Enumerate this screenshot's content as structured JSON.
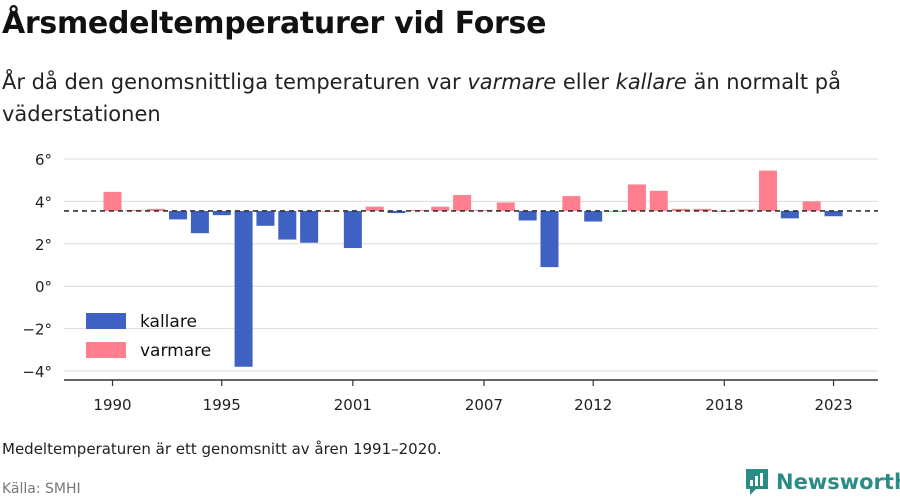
{
  "header": {
    "title": "Årsmedeltemperaturer vid Forse",
    "subtitle_part1": "År då den genomsnittliga temperaturen var ",
    "subtitle_warm": "varmare",
    "subtitle_part2": " eller ",
    "subtitle_cold": "kallare",
    "subtitle_part3": " än normalt på väderstationen"
  },
  "footer": {
    "note": "Medeltemperaturen är ett genomsnitt av åren 1991–2020.",
    "source": "Källa: SMHI",
    "brand": "Newsworthy"
  },
  "colors": {
    "warm": "#ff7f8e",
    "cold": "#3f62c2",
    "brand": "#2a8c84"
  },
  "chart_data": {
    "type": "bar",
    "baseline": 3.55,
    "ylim": [
      -4.5,
      6.5
    ],
    "yticks": [
      6,
      4,
      2,
      0,
      -2,
      -4
    ],
    "ytick_labels": [
      "6°",
      "4°",
      "2°",
      "0°",
      "−2°",
      "−4°"
    ],
    "xticks": [
      1990,
      1995,
      2001,
      2007,
      2012,
      2018,
      2023
    ],
    "x": [
      1990,
      1991,
      1992,
      1993,
      1994,
      1995,
      1996,
      1997,
      1998,
      1999,
      2000,
      2001,
      2002,
      2003,
      2004,
      2005,
      2006,
      2007,
      2008,
      2009,
      2010,
      2011,
      2012,
      2013,
      2014,
      2015,
      2016,
      2017,
      2018,
      2019,
      2020,
      2021,
      2022,
      2023
    ],
    "values": [
      4.45,
      3.6,
      3.65,
      3.15,
      2.5,
      3.35,
      -3.8,
      2.85,
      2.2,
      2.05,
      3.55,
      1.8,
      3.75,
      3.45,
      3.6,
      3.75,
      4.3,
      3.6,
      3.95,
      3.1,
      0.9,
      4.25,
      3.05,
      3.55,
      4.8,
      4.5,
      3.65,
      3.65,
      3.55,
      3.62,
      5.45,
      3.2,
      4.0,
      3.3
    ],
    "legend": [
      {
        "key": "cold",
        "label": "kallare"
      },
      {
        "key": "warm",
        "label": "varmare"
      }
    ],
    "legend_position": "bottom-left",
    "grid": true
  }
}
